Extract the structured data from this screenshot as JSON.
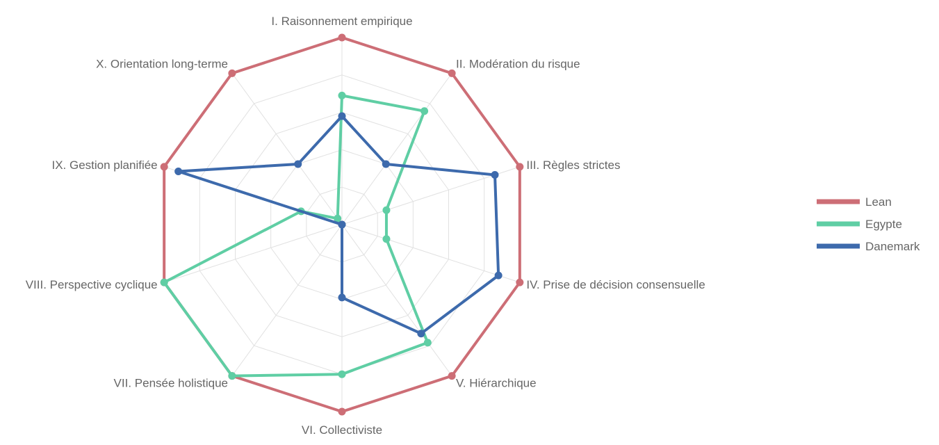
{
  "chart_data": {
    "type": "radar",
    "title": "",
    "axes": [
      "I. Raisonnement empirique",
      "II. Modération du risque",
      "III. Règles strictes",
      "IV. Prise de décision consensuelle",
      "V. Hiérarchique",
      "VI. Collectiviste",
      "VII. Pensée holistique",
      "VIII. Perspective cyclique",
      "IX. Gestion planifiée",
      "X. Orientation long-terme"
    ],
    "rlim": [
      0,
      100
    ],
    "grid": true,
    "legend_position": "right",
    "series": [
      {
        "name": "Lean",
        "color": "#cd6e76",
        "values": [
          100,
          100,
          100,
          100,
          100,
          100,
          100,
          100,
          100,
          100
        ]
      },
      {
        "name": "Egypte",
        "color": "#5fcea4",
        "values": [
          69,
          75,
          25,
          25,
          78,
          80,
          100,
          100,
          23,
          4
        ]
      },
      {
        "name": "Danemark",
        "color": "#3d6aac",
        "values": [
          58,
          40,
          86,
          88,
          72,
          39,
          0,
          0,
          92,
          40
        ]
      }
    ]
  }
}
